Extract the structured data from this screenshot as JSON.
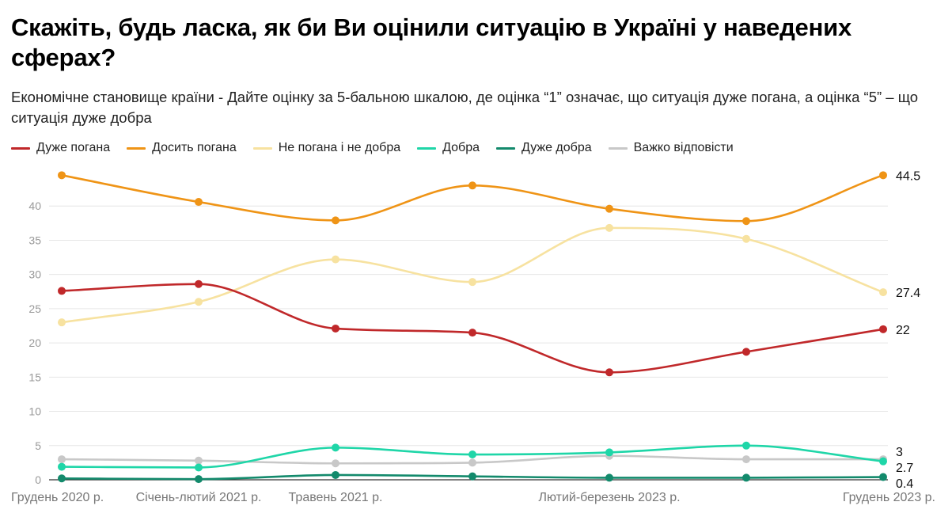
{
  "title": "Скажіть, будь ласка, як би Ви оцінили ситуацію в Україні у наведених сферах?",
  "subtitle": "Економічне становище країни - Дайте оцінку за 5-бальною шкалою, де оцінка “1” означає, що ситуація дуже погана, а оцінка “5” – що ситуація дуже добра",
  "chart_data": {
    "type": "line",
    "x_tick_labels": [
      "Грудень 2020 р.",
      "Січень-лютий 2021 р.",
      "Травень 2021 р.",
      "Лютий-березень 2023 р.",
      "Грудень 2023 р."
    ],
    "x_tick_positions": [
      0,
      1,
      2,
      4,
      6
    ],
    "y_ticks": [
      0,
      5,
      10,
      15,
      20,
      25,
      30,
      35,
      40
    ],
    "ylim": [
      0,
      45
    ],
    "grid": true,
    "legend_position": "top-left",
    "series": [
      {
        "name": "Дуже погана",
        "color": "#c0282a",
        "values": [
          27.6,
          28.6,
          22.1,
          21.5,
          15.7,
          18.7,
          22
        ],
        "end_label": "22"
      },
      {
        "name": "Досить погана",
        "color": "#ef9416",
        "values": [
          44.5,
          40.6,
          37.9,
          43.0,
          39.6,
          37.8,
          44.5
        ],
        "end_label": "44.5"
      },
      {
        "name": "Не погана і не добра",
        "color": "#f7e2a0",
        "values": [
          23.0,
          26.0,
          32.2,
          28.9,
          36.8,
          35.2,
          27.4
        ],
        "end_label": "27.4"
      },
      {
        "name": "Добра",
        "color": "#1fd6a8",
        "values": [
          1.9,
          1.8,
          4.7,
          3.7,
          4.0,
          5.0,
          2.7
        ],
        "end_label": "2.7"
      },
      {
        "name": "Дуже добра",
        "color": "#138a6c",
        "values": [
          0.2,
          0.1,
          0.7,
          0.5,
          0.3,
          0.3,
          0.4
        ],
        "end_label": "0.4"
      },
      {
        "name": "Важко відповісти",
        "color": "#c8c8c8",
        "values": [
          3.0,
          2.8,
          2.4,
          2.5,
          3.5,
          3.0,
          3.0
        ],
        "end_label": "3"
      }
    ]
  }
}
